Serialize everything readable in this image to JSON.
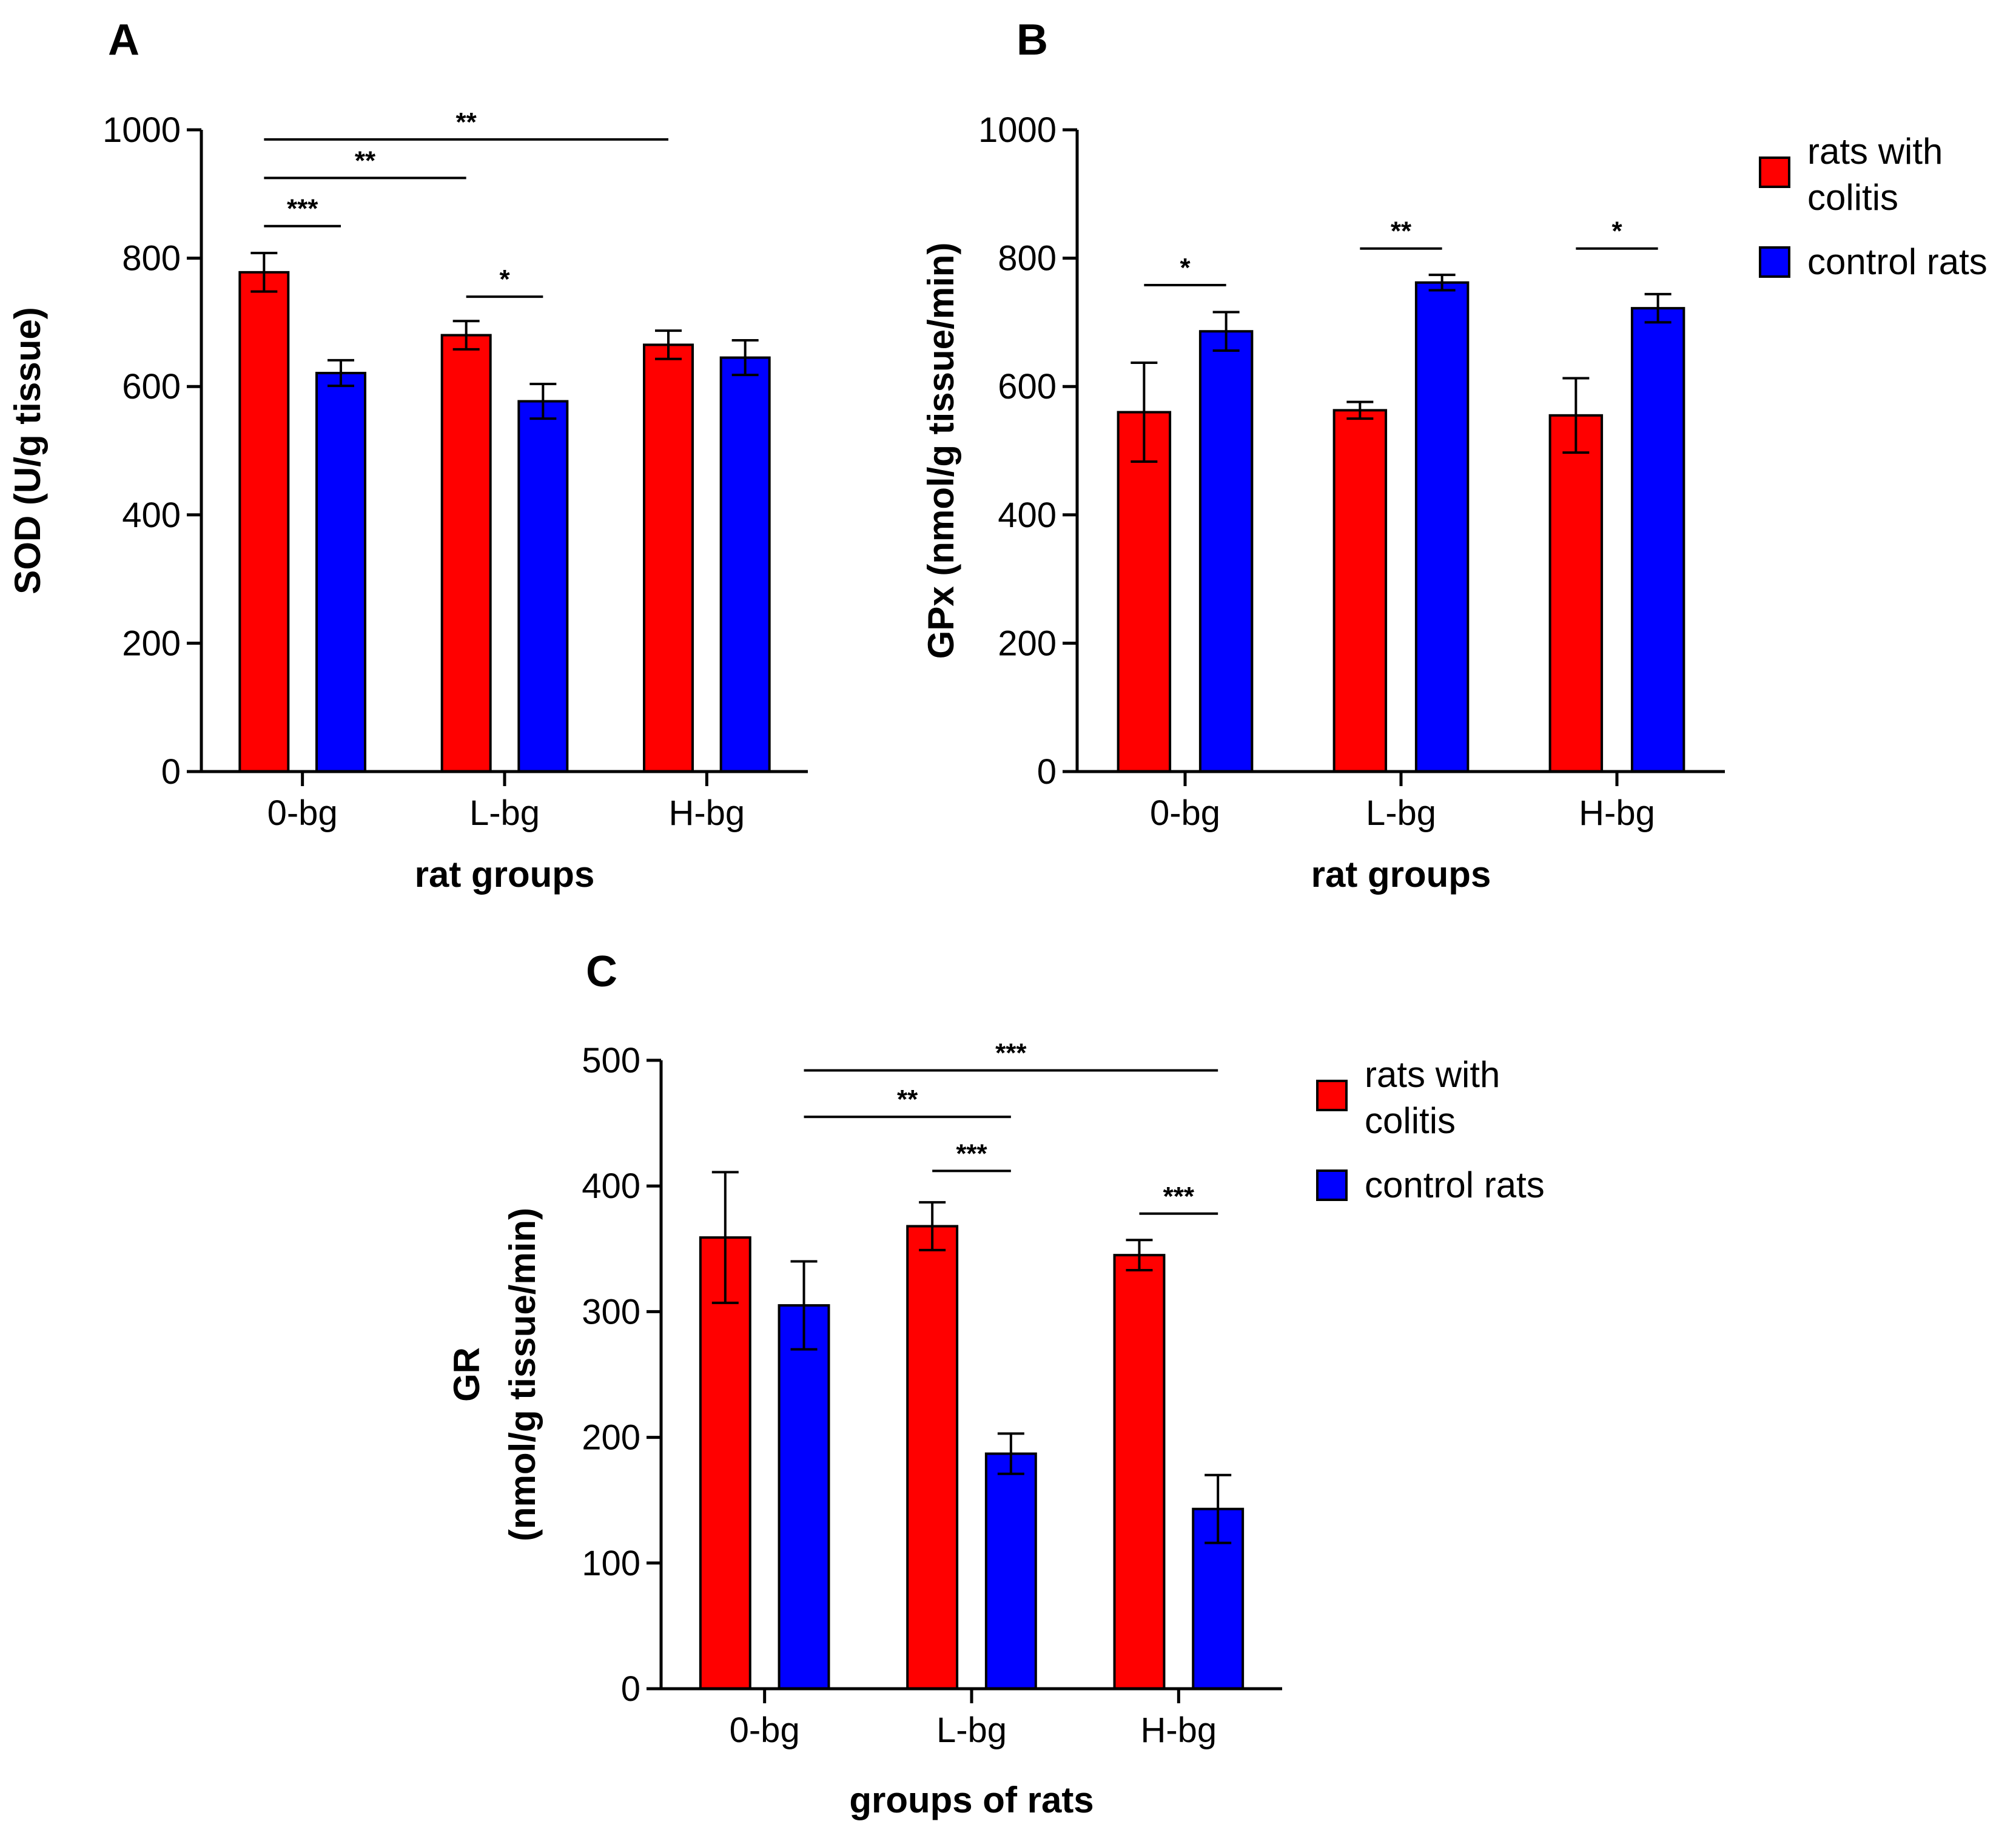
{
  "colors": {
    "colitis": "#ff0000",
    "control": "#0000ff",
    "axis": "#000000"
  },
  "legend": {
    "colitis_label_line1": "rats with",
    "colitis_label_line2": "colitis",
    "control_label": "control rats"
  },
  "chart_data": [
    {
      "panel": "A",
      "type": "bar",
      "title": "A",
      "categories": [
        "0-bg",
        "L-bg",
        "H-bg"
      ],
      "xlabel": "rat groups",
      "ylabel": "SOD (U/g tissue)",
      "ylim": [
        0,
        1000
      ],
      "yticks": [
        0,
        200,
        400,
        600,
        800,
        1000
      ],
      "series": [
        {
          "name": "rats with colitis",
          "values": [
            778,
            680,
            665
          ],
          "errors": [
            30,
            22,
            22
          ]
        },
        {
          "name": "control rats",
          "values": [
            621,
            577,
            645
          ],
          "errors": [
            20,
            27,
            27
          ]
        }
      ],
      "significance": [
        {
          "from": [
            0,
            0
          ],
          "to": [
            0,
            1
          ],
          "level": 850,
          "label": "***"
        },
        {
          "from": [
            1,
            0
          ],
          "to": [
            1,
            1
          ],
          "level": 740,
          "label": "*"
        },
        {
          "from": [
            0,
            0
          ],
          "to": [
            1,
            0
          ],
          "level": 925,
          "label": "**"
        },
        {
          "from": [
            0,
            0
          ],
          "to": [
            2,
            0
          ],
          "level": 985,
          "label": "**"
        }
      ],
      "legend": false
    },
    {
      "panel": "B",
      "type": "bar",
      "title": "B",
      "categories": [
        "0-bg",
        "L-bg",
        "H-bg"
      ],
      "xlabel": "rat groups",
      "ylabel": "GPx (nmol/g tissue/min)",
      "ylim": [
        0,
        1000
      ],
      "yticks": [
        0,
        200,
        400,
        600,
        800,
        1000
      ],
      "series": [
        {
          "name": "rats with colitis",
          "values": [
            560,
            563,
            555
          ],
          "errors": [
            77,
            13,
            58
          ]
        },
        {
          "name": "control rats",
          "values": [
            686,
            762,
            722
          ],
          "errors": [
            30,
            12,
            22
          ]
        }
      ],
      "significance": [
        {
          "from": [
            0,
            0
          ],
          "to": [
            0,
            1
          ],
          "level": 758,
          "label": "*"
        },
        {
          "from": [
            1,
            0
          ],
          "to": [
            1,
            1
          ],
          "level": 815,
          "label": "**"
        },
        {
          "from": [
            2,
            0
          ],
          "to": [
            2,
            1
          ],
          "level": 815,
          "label": "*"
        }
      ],
      "legend": true,
      "legend_position": "right"
    },
    {
      "panel": "C",
      "type": "bar",
      "title": "C",
      "categories": [
        "0-bg",
        "L-bg",
        "H-bg"
      ],
      "xlabel": "groups of rats",
      "ylabel_lines": [
        "GR",
        "(nmol/g tissue/min)"
      ],
      "ylim": [
        0,
        500
      ],
      "yticks": [
        0,
        100,
        200,
        300,
        400,
        500
      ],
      "series": [
        {
          "name": "rats with colitis",
          "values": [
            359,
            368,
            345
          ],
          "errors": [
            52,
            19,
            12
          ]
        },
        {
          "name": "control rats",
          "values": [
            305,
            187,
            143
          ],
          "errors": [
            35,
            16,
            27
          ]
        }
      ],
      "significance": [
        {
          "from": [
            1,
            0
          ],
          "to": [
            1,
            1
          ],
          "level": 412,
          "label": "***"
        },
        {
          "from": [
            2,
            0
          ],
          "to": [
            2,
            1
          ],
          "level": 378,
          "label": "***"
        },
        {
          "from": [
            0,
            1
          ],
          "to": [
            1,
            1
          ],
          "level": 455,
          "label": "**"
        },
        {
          "from": [
            0,
            1
          ],
          "to": [
            2,
            1
          ],
          "level": 492,
          "label": "***"
        }
      ],
      "legend": true,
      "legend_position": "right"
    }
  ]
}
